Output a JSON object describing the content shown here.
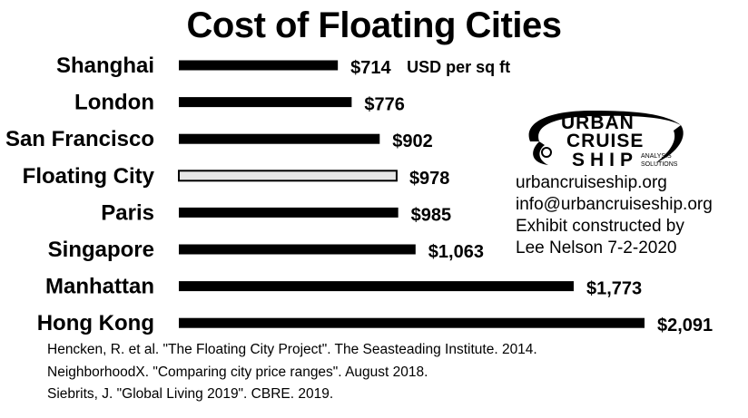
{
  "chart_data": {
    "type": "bar",
    "orientation": "horizontal",
    "title": "Cost of Floating Cities",
    "categories": [
      "Shanghai",
      "London",
      "San Francisco",
      "Floating City",
      "Paris",
      "Singapore",
      "Manhattan",
      "Hong Kong"
    ],
    "values": [
      714,
      776,
      902,
      978,
      985,
      1063,
      1773,
      2091
    ],
    "value_labels": [
      "$714",
      "$776",
      "$902",
      "$978",
      "$985",
      "$1,063",
      "$1,773",
      "$2,091"
    ],
    "unit_label": "USD per sq ft",
    "highlight_category": "Floating City",
    "colors": {
      "bar": "#000000",
      "highlight": "#e6e6e6",
      "outline": "#000000"
    },
    "xlim": [
      0,
      2091
    ],
    "grid": false,
    "legend": "none"
  },
  "logo": {
    "line1": "URBAN",
    "line2": "CRUISE",
    "line3": "SHIP",
    "tagline1": "ANALYSIS",
    "tagline2": "SOLUTIONS"
  },
  "info": {
    "website": "urbancruiseship.org",
    "email": "info@urbancruiseship.org",
    "exhibit_line1": "Exhibit constructed by",
    "exhibit_line2": "Lee Nelson 7-2-2020"
  },
  "references": [
    "Hencken, R. et al. \"The Floating City Project\". The Seasteading Institute. 2014.",
    "NeighborhoodX. \"Comparing city price ranges\". August 2018.",
    "Siebrits, J. \"Global Living 2019\". CBRE. 2019."
  ]
}
